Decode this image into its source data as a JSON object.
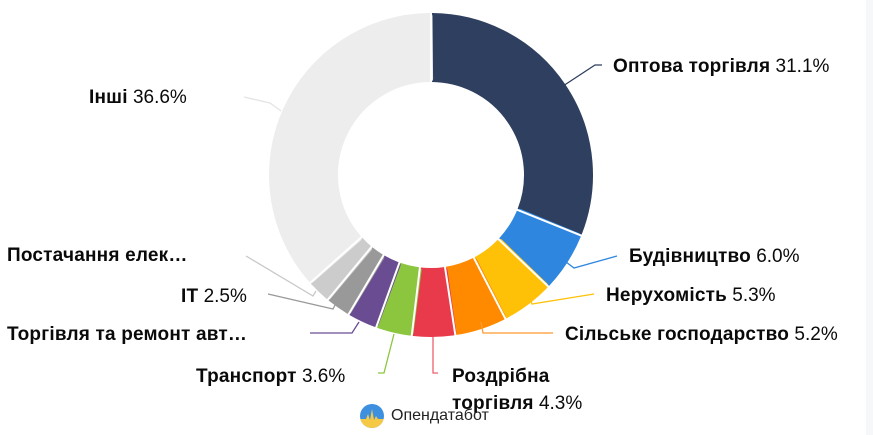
{
  "chart_data": {
    "type": "pie",
    "variant": "donut",
    "title": "",
    "start_angle_deg": 0,
    "direction": "clockwise",
    "segments": [
      {
        "label": "Оптова торгівля",
        "value": 31.1,
        "display": "31.1%",
        "color": "#2E3F5F"
      },
      {
        "label": "Будівництво",
        "value": 6.0,
        "display": "6.0%",
        "color": "#2E86DE"
      },
      {
        "label": "Нерухомість",
        "value": 5.3,
        "display": "5.3%",
        "color": "#FFC107"
      },
      {
        "label": "Сільське господарство",
        "value": 5.2,
        "display": "5.2%",
        "color": "#FF8A00"
      },
      {
        "label": "Роздрібна торгівля",
        "value": 4.3,
        "display": "4.3%",
        "color": "#E83A4B"
      },
      {
        "label": "Транспорт",
        "value": 3.6,
        "display": "3.6%",
        "color": "#8CC63F"
      },
      {
        "label": "Торгівля та ремонт авт…",
        "value": 3.0,
        "display": "",
        "color": "#6A4C93"
      },
      {
        "label": "IT",
        "value": 2.5,
        "display": "2.5%",
        "color": "#999999"
      },
      {
        "label": "Постачання елек…",
        "value": 2.4,
        "display": "",
        "color": "#CCCCCC"
      },
      {
        "label": "Інші",
        "value": 36.6,
        "display": "36.6%",
        "color": "#EDEDED"
      }
    ],
    "legend": "none (outside labels with leader lines)"
  },
  "labels": {
    "wholesale": {
      "name": "Оптова торгівля",
      "pct": "31.1%"
    },
    "construction": {
      "name": "Будівництво",
      "pct": "6.0%"
    },
    "real_estate": {
      "name": "Нерухомість",
      "pct": "5.3%"
    },
    "agriculture": {
      "name": "Сільське господарство",
      "pct": "5.2%"
    },
    "retail_line1": {
      "name": "Роздрібна"
    },
    "retail_line2": {
      "name": "торгівля",
      "pct": "4.3%"
    },
    "transport": {
      "name": "Транспорт",
      "pct": "3.6%"
    },
    "auto": {
      "name": "Торгівля та ремонт авт…"
    },
    "it": {
      "name": "IT",
      "pct": "2.5%"
    },
    "energy": {
      "name": "Постачання елек…"
    },
    "other": {
      "name": "Інші",
      "pct": "36.6%"
    }
  },
  "logo": {
    "text": "Опендатабот"
  }
}
